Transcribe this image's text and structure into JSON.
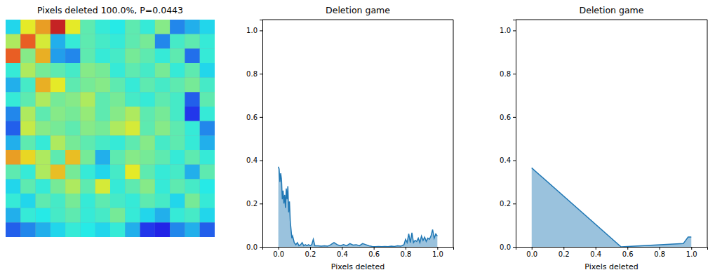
{
  "chart_data": [
    {
      "type": "heatmap",
      "title": "Pixels deleted 100.0%, P=0.0443",
      "tick_labels": false,
      "zlim": [
        0,
        1
      ],
      "cells": [
        [
          0.35,
          0.62,
          0.72,
          0.92,
          0.62,
          0.45,
          0.4,
          0.38,
          0.45,
          0.4,
          0.5,
          0.25,
          0.3,
          0.35
        ],
        [
          0.55,
          0.8,
          0.6,
          0.3,
          0.4,
          0.45,
          0.42,
          0.4,
          0.45,
          0.48,
          0.25,
          0.42,
          0.45,
          0.4
        ],
        [
          0.8,
          0.5,
          0.7,
          0.28,
          0.25,
          0.45,
          0.4,
          0.42,
          0.48,
          0.45,
          0.4,
          0.45,
          0.22,
          0.4
        ],
        [
          0.4,
          0.55,
          0.48,
          0.45,
          0.42,
          0.5,
          0.48,
          0.4,
          0.45,
          0.42,
          0.48,
          0.4,
          0.45,
          0.35
        ],
        [
          0.3,
          0.42,
          0.7,
          0.62,
          0.45,
          0.48,
          0.5,
          0.45,
          0.4,
          0.45,
          0.42,
          0.45,
          0.48,
          0.42
        ],
        [
          0.4,
          0.45,
          0.55,
          0.48,
          0.5,
          0.55,
          0.45,
          0.48,
          0.42,
          0.4,
          0.45,
          0.42,
          0.2,
          0.45
        ],
        [
          0.25,
          0.55,
          0.45,
          0.5,
          0.48,
          0.52,
          0.45,
          0.5,
          0.55,
          0.45,
          0.48,
          0.42,
          0.15,
          0.4
        ],
        [
          0.2,
          0.58,
          0.5,
          0.48,
          0.45,
          0.5,
          0.48,
          0.55,
          0.6,
          0.45,
          0.5,
          0.45,
          0.4,
          0.25
        ],
        [
          0.3,
          0.45,
          0.4,
          0.55,
          0.48,
          0.45,
          0.42,
          0.4,
          0.45,
          0.5,
          0.42,
          0.45,
          0.4,
          0.3
        ],
        [
          0.72,
          0.65,
          0.55,
          0.45,
          0.68,
          0.48,
          0.3,
          0.45,
          0.5,
          0.48,
          0.45,
          0.4,
          0.45,
          0.4
        ],
        [
          0.45,
          0.4,
          0.55,
          0.68,
          0.48,
          0.4,
          0.35,
          0.42,
          0.62,
          0.45,
          0.4,
          0.42,
          0.3,
          0.45
        ],
        [
          0.35,
          0.45,
          0.4,
          0.48,
          0.55,
          0.45,
          0.6,
          0.4,
          0.45,
          0.5,
          0.4,
          0.45,
          0.42,
          0.38
        ],
        [
          0.4,
          0.35,
          0.45,
          0.42,
          0.48,
          0.4,
          0.45,
          0.42,
          0.4,
          0.45,
          0.42,
          0.35,
          0.48,
          0.4
        ],
        [
          0.3,
          0.4,
          0.38,
          0.42,
          0.45,
          0.4,
          0.42,
          0.48,
          0.4,
          0.35,
          0.3,
          0.4,
          0.42,
          0.35
        ],
        [
          0.2,
          0.25,
          0.3,
          0.35,
          0.4,
          0.38,
          0.35,
          0.4,
          0.3,
          0.15,
          0.12,
          0.25,
          0.3,
          0.2
        ]
      ]
    },
    {
      "type": "area",
      "title": "Deletion game",
      "x_label": "Pixels deleted",
      "color": "#1f77b4",
      "x": [
        0,
        0.005,
        0.01,
        0.015,
        0.02,
        0.025,
        0.03,
        0.035,
        0.04,
        0.045,
        0.05,
        0.055,
        0.06,
        0.065,
        0.07,
        0.075,
        0.08,
        0.085,
        0.09,
        0.1,
        0.11,
        0.12,
        0.13,
        0.14,
        0.15,
        0.16,
        0.17,
        0.18,
        0.19,
        0.2,
        0.21,
        0.22,
        0.23,
        0.25,
        0.27,
        0.29,
        0.31,
        0.33,
        0.35,
        0.37,
        0.39,
        0.41,
        0.43,
        0.45,
        0.47,
        0.49,
        0.51,
        0.53,
        0.55,
        0.57,
        0.59,
        0.61,
        0.63,
        0.65,
        0.67,
        0.69,
        0.71,
        0.73,
        0.75,
        0.77,
        0.79,
        0.8,
        0.81,
        0.82,
        0.83,
        0.84,
        0.85,
        0.86,
        0.87,
        0.88,
        0.89,
        0.9,
        0.91,
        0.92,
        0.93,
        0.94,
        0.95,
        0.96,
        0.97,
        0.98,
        0.99,
        1.0
      ],
      "values": [
        0.37,
        0.36,
        0.3,
        0.34,
        0.31,
        0.22,
        0.26,
        0.2,
        0.24,
        0.18,
        0.27,
        0.22,
        0.28,
        0.16,
        0.21,
        0.12,
        0.08,
        0.04,
        0.05,
        0.02,
        0.01,
        0.02,
        0.005,
        0.01,
        0.02,
        0.005,
        0.01,
        0.005,
        0.01,
        0.005,
        0.01,
        0.035,
        0.005,
        0.005,
        0.003,
        0.005,
        0.003,
        0.01,
        0.02,
        0.01,
        0.005,
        0.01,
        0.005,
        0.015,
        0.008,
        0.01,
        0.005,
        0.015,
        0.01,
        0.005,
        0.002,
        0.001,
        0.002,
        0.001,
        0.002,
        0.001,
        0.003,
        0.002,
        0.005,
        0.003,
        0.01,
        0.035,
        0.02,
        0.06,
        0.02,
        0.065,
        0.02,
        0.03,
        0.025,
        0.04,
        0.02,
        0.05,
        0.03,
        0.045,
        0.025,
        0.04,
        0.035,
        0.05,
        0.08,
        0.04,
        0.06,
        0.05
      ],
      "xlim": [
        -0.1,
        1.1
      ],
      "ylim": [
        0,
        1.05
      ],
      "xticks": [
        {
          "value": 0,
          "label": "0.0"
        },
        {
          "value": 0.2,
          "label": "0.2"
        },
        {
          "value": 0.4,
          "label": "0.4"
        },
        {
          "value": 0.6,
          "label": "0.6"
        },
        {
          "value": 0.8,
          "label": "0.8"
        },
        {
          "value": 1,
          "label": "1.0"
        }
      ],
      "yticks": [
        {
          "value": 0,
          "label": "0.0"
        },
        {
          "value": 0.2,
          "label": "0.2"
        },
        {
          "value": 0.4,
          "label": "0.4"
        },
        {
          "value": 0.6,
          "label": "0.6"
        },
        {
          "value": 0.8,
          "label": "0.8"
        },
        {
          "value": 1,
          "label": "1.0"
        }
      ]
    },
    {
      "type": "area",
      "title": "Deletion game",
      "x_label": "Pixels deleted",
      "color": "#1f77b4",
      "x": [
        0,
        0.56,
        0.95,
        0.98,
        1.0
      ],
      "values": [
        0.365,
        0.0,
        0.015,
        0.045,
        0.045
      ],
      "xlim": [
        -0.1,
        1.1
      ],
      "ylim": [
        0,
        1.05
      ],
      "xticks": [
        {
          "value": 0,
          "label": "0.0"
        },
        {
          "value": 0.2,
          "label": "0.2"
        },
        {
          "value": 0.4,
          "label": "0.4"
        },
        {
          "value": 0.6,
          "label": "0.6"
        },
        {
          "value": 0.8,
          "label": "0.8"
        },
        {
          "value": 1,
          "label": "1.0"
        }
      ],
      "yticks": [
        {
          "value": 0,
          "label": "0.0"
        },
        {
          "value": 0.2,
          "label": "0.2"
        },
        {
          "value": 0.4,
          "label": "0.4"
        },
        {
          "value": 0.6,
          "label": "0.6"
        },
        {
          "value": 0.8,
          "label": "0.8"
        },
        {
          "value": 1,
          "label": "1.0"
        }
      ]
    }
  ]
}
